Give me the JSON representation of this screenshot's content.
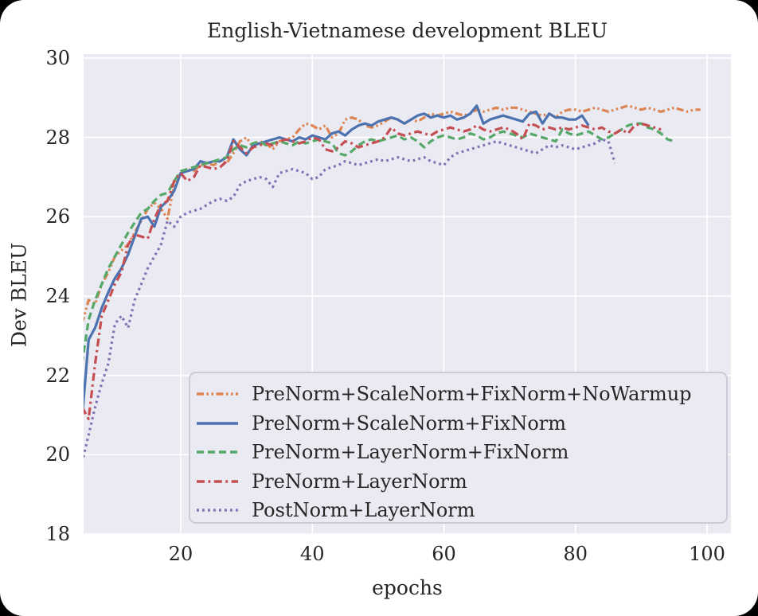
{
  "figure": {
    "title": "English-Vietnamese development BLEU",
    "xlabel": "epochs",
    "ylabel": "Dev BLEU"
  },
  "chart_data": {
    "type": "line",
    "title": "English-Vietnamese development BLEU",
    "xlabel": "epochs",
    "ylabel": "Dev BLEU",
    "xlim": [
      5.24,
      103.63
    ],
    "ylim": [
      17.98,
      30.1
    ],
    "xticks": [
      20,
      40,
      60,
      80,
      100
    ],
    "yticks": [
      18,
      20,
      22,
      24,
      26,
      28,
      30
    ],
    "grid": true,
    "grid_color": "#ffffff",
    "plot_background": "#eaeaf2",
    "legend_position": "lower right inside",
    "x_unit": "epoch",
    "note": "each series starts at epoch_start with one value per epoch",
    "series": [
      {
        "name": "PreNorm+ScaleNorm+FixNorm+NoWarmup",
        "color": "#dd8452",
        "dash": "dashdotdot",
        "epoch_start": 5,
        "values": [
          23.3,
          23.9,
          23.8,
          24.3,
          24.6,
          25.0,
          25.15,
          25.3,
          25.6,
          25.9,
          26.2,
          26.35,
          26.2,
          25.95,
          26.8,
          27.1,
          27.2,
          27.15,
          27.3,
          27.35,
          27.3,
          27.4,
          27.35,
          27.6,
          27.9,
          28.0,
          27.75,
          27.9,
          27.85,
          27.7,
          27.9,
          27.95,
          28.0,
          28.2,
          28.35,
          28.3,
          28.2,
          28.3,
          28.0,
          28.1,
          28.45,
          28.5,
          28.45,
          28.3,
          28.25,
          28.3,
          28.4,
          28.5,
          28.45,
          28.35,
          28.45,
          28.4,
          28.5,
          28.6,
          28.55,
          28.6,
          28.65,
          28.6,
          28.55,
          28.6,
          28.7,
          28.65,
          28.7,
          28.75,
          28.7,
          28.75,
          28.75,
          28.7,
          28.65,
          28.6,
          28.55,
          28.6,
          28.5,
          28.65,
          28.7,
          28.7,
          28.65,
          28.7,
          28.75,
          28.7,
          28.65,
          28.7,
          28.75,
          28.8,
          28.75,
          28.7,
          28.75,
          28.7,
          28.65,
          28.7,
          28.75,
          28.7,
          28.65,
          28.7,
          28.7
        ]
      },
      {
        "name": "PreNorm+ScaleNorm+FixNorm",
        "color": "#4c72b0",
        "dash": "solid",
        "epoch_start": 5,
        "values": [
          20.9,
          22.9,
          23.2,
          23.7,
          24.1,
          24.45,
          24.7,
          25.05,
          25.5,
          25.95,
          26.0,
          25.75,
          26.25,
          26.4,
          26.65,
          27.1,
          27.15,
          27.2,
          27.4,
          27.35,
          27.4,
          27.4,
          27.5,
          27.95,
          27.7,
          27.55,
          27.8,
          27.85,
          27.9,
          27.95,
          28.0,
          27.95,
          27.9,
          28.0,
          27.95,
          28.05,
          28.0,
          27.95,
          28.1,
          28.15,
          28.05,
          28.2,
          28.3,
          28.35,
          28.3,
          28.4,
          28.45,
          28.5,
          28.45,
          28.35,
          28.45,
          28.55,
          28.6,
          28.5,
          28.55,
          28.5,
          28.55,
          28.45,
          28.5,
          28.6,
          28.8,
          28.35,
          28.45,
          28.5,
          28.55,
          28.5,
          28.45,
          28.4,
          28.6,
          28.65,
          28.35,
          28.6,
          28.5,
          28.5,
          28.45,
          28.45,
          28.55,
          28.3
        ]
      },
      {
        "name": "PreNorm+LayerNorm+FixNorm",
        "color": "#55a868",
        "dash": "dashed",
        "epoch_start": 5,
        "values": [
          22.3,
          23.4,
          23.9,
          24.3,
          24.7,
          25.0,
          25.3,
          25.6,
          25.85,
          26.1,
          26.2,
          26.4,
          26.55,
          26.6,
          26.9,
          27.15,
          27.2,
          27.25,
          27.3,
          27.35,
          27.4,
          27.45,
          27.5,
          27.7,
          27.8,
          27.75,
          27.85,
          27.9,
          27.8,
          27.85,
          27.9,
          27.85,
          27.8,
          27.9,
          27.85,
          27.9,
          27.95,
          27.9,
          27.85,
          27.6,
          27.55,
          27.65,
          27.8,
          27.9,
          27.95,
          27.9,
          27.95,
          28.0,
          28.05,
          27.95,
          28.0,
          27.9,
          27.75,
          27.9,
          28.0,
          28.05,
          28.0,
          27.95,
          28.0,
          28.1,
          28.05,
          27.95,
          28.0,
          28.1,
          28.15,
          28.1,
          28.05,
          28.0,
          28.1,
          28.05,
          28.0,
          27.95,
          27.9,
          28.2,
          28.1,
          28.05,
          28.1,
          28.15,
          28.05,
          27.95,
          28.0,
          28.1,
          28.2,
          28.3,
          28.35,
          28.35,
          28.25,
          28.2,
          28.1,
          27.95,
          27.9
        ]
      },
      {
        "name": "PreNorm+LayerNorm",
        "color": "#c44e52",
        "dash": "dashdot",
        "epoch_start": 5,
        "values": [
          21.2,
          20.9,
          22.3,
          23.5,
          23.9,
          24.3,
          24.6,
          25.3,
          25.55,
          25.5,
          25.45,
          25.95,
          26.3,
          26.4,
          26.9,
          27.1,
          26.9,
          27.0,
          27.3,
          27.25,
          27.2,
          27.25,
          27.4,
          27.9,
          27.75,
          27.6,
          27.75,
          27.8,
          27.85,
          27.8,
          27.9,
          27.95,
          27.9,
          27.85,
          27.9,
          28.0,
          27.95,
          27.7,
          27.65,
          27.75,
          27.9,
          27.85,
          27.75,
          27.8,
          27.85,
          27.9,
          28.0,
          28.25,
          28.1,
          28.05,
          28.1,
          28.15,
          28.1,
          28.05,
          28.15,
          28.2,
          28.25,
          28.2,
          28.15,
          28.2,
          28.3,
          28.2,
          28.15,
          28.2,
          28.25,
          28.2,
          28.1,
          27.95,
          28.35,
          28.3,
          28.2,
          28.25,
          28.2,
          28.25,
          28.2,
          28.25,
          28.3,
          28.25,
          28.2,
          28.25,
          28.15,
          28.1,
          28.2,
          28.1,
          28.3,
          28.35,
          28.3,
          28.25,
          28.2
        ]
      },
      {
        "name": "PostNorm+LayerNorm",
        "color": "#8172b3",
        "dash": "dotted",
        "epoch_start": 5,
        "values": [
          19.8,
          20.5,
          21.2,
          21.8,
          22.3,
          23.3,
          23.5,
          23.2,
          23.9,
          24.3,
          24.7,
          25.0,
          25.3,
          25.9,
          25.75,
          26.0,
          26.1,
          26.15,
          26.2,
          26.3,
          26.4,
          26.45,
          26.4,
          26.5,
          26.8,
          26.9,
          26.95,
          27.0,
          26.95,
          26.75,
          27.1,
          27.15,
          27.2,
          27.15,
          27.1,
          26.95,
          27.0,
          27.2,
          27.25,
          27.3,
          27.4,
          27.35,
          27.3,
          27.35,
          27.4,
          27.45,
          27.4,
          27.45,
          27.5,
          27.45,
          27.4,
          27.45,
          27.5,
          27.4,
          27.35,
          27.3,
          27.5,
          27.6,
          27.65,
          27.7,
          27.75,
          27.8,
          27.85,
          27.9,
          27.85,
          27.8,
          27.75,
          27.7,
          27.65,
          27.6,
          27.7,
          27.8,
          27.75,
          27.8,
          27.75,
          27.7,
          27.75,
          27.8,
          27.85,
          27.95,
          27.9,
          27.35
        ]
      }
    ]
  }
}
